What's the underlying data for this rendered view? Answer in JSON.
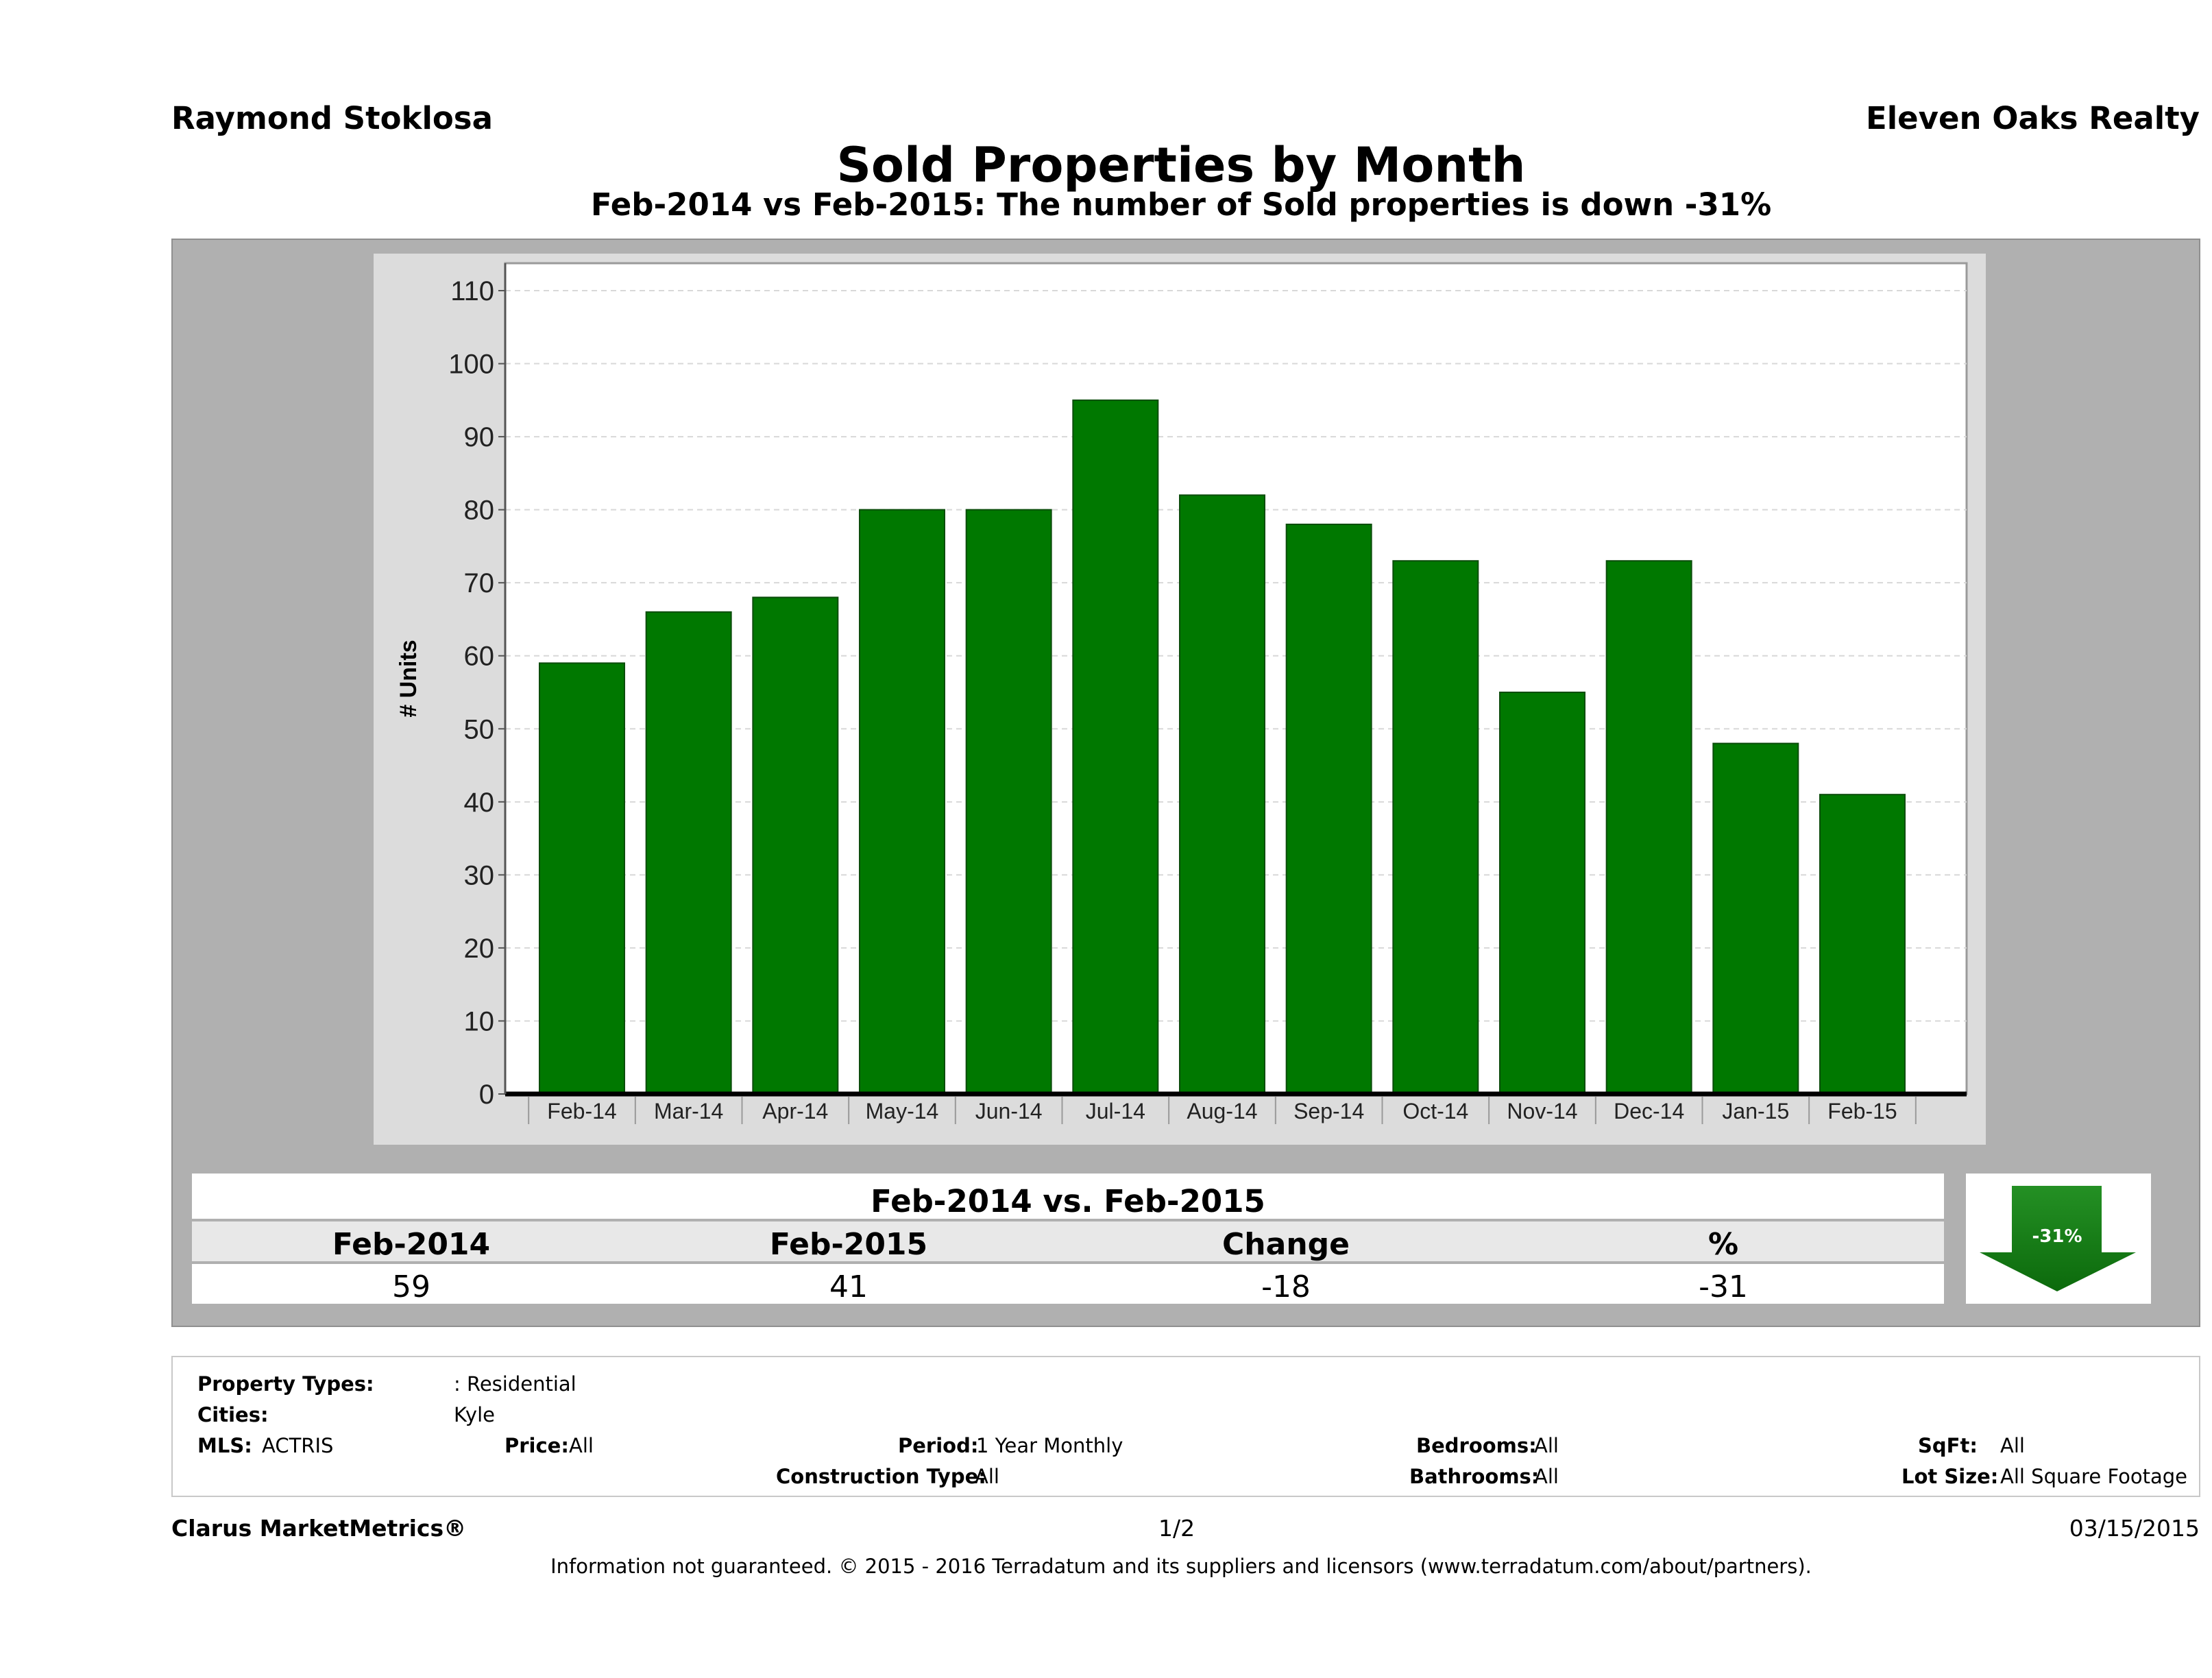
{
  "header": {
    "agent": "Raymond Stoklosa",
    "brokerage": "Eleven Oaks Realty",
    "title": "Sold Properties by Month",
    "subtitle": "Feb-2014 vs Feb-2015: The number of Sold  properties is down -31%"
  },
  "chart_data": {
    "type": "bar",
    "categories": [
      "Feb-14",
      "Mar-14",
      "Apr-14",
      "May-14",
      "Jun-14",
      "Jul-14",
      "Aug-14",
      "Sep-14",
      "Oct-14",
      "Nov-14",
      "Dec-14",
      "Jan-15",
      "Feb-15"
    ],
    "values": [
      59,
      66,
      68,
      80,
      80,
      95,
      82,
      78,
      73,
      55,
      73,
      48,
      41
    ],
    "ylabel": "# Units",
    "xlabel": "",
    "ylim": [
      0,
      110
    ],
    "yticks": [
      0,
      10,
      20,
      30,
      40,
      50,
      60,
      70,
      80,
      90,
      100,
      110
    ],
    "grid": true,
    "bar_color": "#007800"
  },
  "summary": {
    "title": "Feb-2014 vs. Feb-2015",
    "headers": [
      "Feb-2014",
      "Feb-2015",
      "Change",
      "%"
    ],
    "values": [
      "59",
      "41",
      "-18",
      "-31"
    ],
    "badge": "-31%",
    "badge_color": "#1a7d1a"
  },
  "criteria": {
    "property_types_label": "Property Types:",
    "property_types_value": ": Residential",
    "cities_label": "Cities:",
    "cities_value": "Kyle",
    "mls_label": "MLS:",
    "mls_value": "ACTRIS",
    "price_label": "Price:",
    "price_value": "All",
    "period_label": "Period:",
    "period_value": "1 Year Monthly",
    "construction_label": "Construction Type:",
    "construction_value": "All",
    "bedrooms_label": "Bedrooms:",
    "bedrooms_value": "All",
    "bathrooms_label": "Bathrooms:",
    "bathrooms_value": "All",
    "sqft_label": "SqFt:",
    "sqft_value": "All",
    "lotsize_label": "Lot Size:",
    "lotsize_value": "All Square Footage"
  },
  "footer": {
    "product": "Clarus MarketMetrics®",
    "page": "1/2",
    "date": "03/15/2015",
    "disclaimer": "Information not guaranteed. © 2015 - 2016 Terradatum and its suppliers and licensors (www.terradatum.com/about/partners)."
  }
}
